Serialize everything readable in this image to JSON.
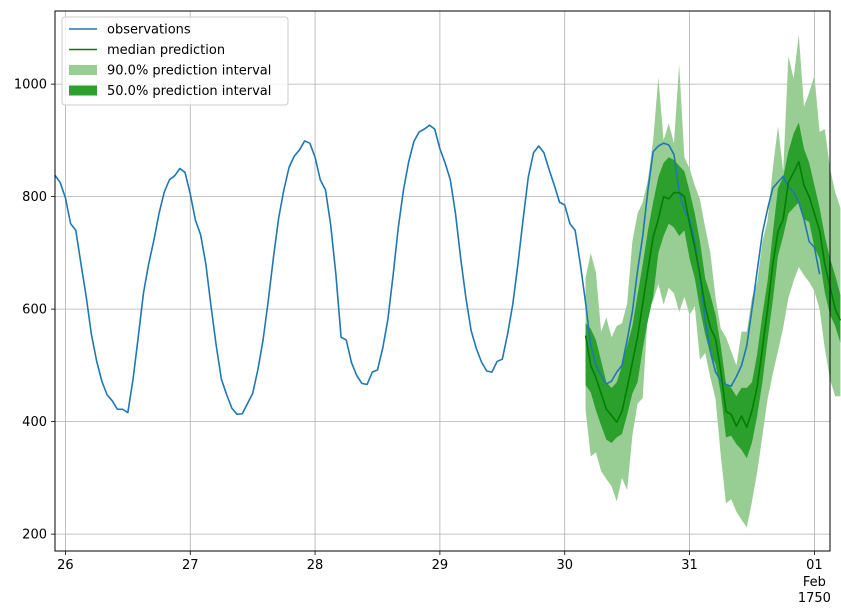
{
  "chart_data": {
    "type": "line",
    "title": "",
    "xlabel": "",
    "ylabel": "",
    "x_unit": "hour",
    "xlim": [
      "1750-01-25T22:00",
      "1750-02-01T03:00"
    ],
    "ylim": [
      170,
      1130
    ],
    "grid": true,
    "legend_position": "top-left",
    "x_ticks": [
      {
        "at": "1750-01-26T00:00",
        "label": "26"
      },
      {
        "at": "1750-01-27T00:00",
        "label": "27"
      },
      {
        "at": "1750-01-28T00:00",
        "label": "28"
      },
      {
        "at": "1750-01-29T00:00",
        "label": "29"
      },
      {
        "at": "1750-01-30T00:00",
        "label": "30"
      },
      {
        "at": "1750-01-31T00:00",
        "label": "31"
      },
      {
        "at": "1750-02-01T00:00",
        "label": "01",
        "label2": "Feb",
        "label3": "1750"
      }
    ],
    "y_ticks": [
      200,
      400,
      600,
      800,
      1000
    ],
    "series": [
      {
        "name": "observations",
        "color": "#1f77b4",
        "kind": "line",
        "start": "1750-01-25T22:00",
        "values": [
          838,
          825,
          798,
          752,
          740,
          680,
          622,
          555,
          508,
          472,
          448,
          437,
          422,
          422,
          416,
          475,
          550,
          628,
          680,
          722,
          770,
          808,
          830,
          837,
          850,
          843,
          805,
          758,
          732,
          680,
          605,
          535,
          475,
          448,
          424,
          413,
          414,
          432,
          450,
          492,
          545,
          615,
          692,
          762,
          812,
          852,
          872,
          883,
          899,
          895,
          870,
          830,
          812,
          750,
          662,
          550,
          545,
          505,
          482,
          468,
          466,
          488,
          492,
          530,
          582,
          660,
          745,
          812,
          862,
          898,
          915,
          920,
          927,
          920,
          885,
          860,
          830,
          770,
          690,
          620,
          562,
          530,
          506,
          490,
          488,
          507,
          511,
          555,
          608,
          680,
          760,
          835,
          878,
          890,
          878,
          848,
          820,
          790,
          785,
          752,
          740,
          680,
          612,
          535,
          500,
          482,
          467,
          472,
          488,
          500,
          545,
          595,
          668,
          730,
          812,
          880,
          890,
          895,
          892,
          875,
          810,
          775,
          760,
          720,
          660,
          580,
          524,
          488,
          473,
          466,
          463,
          480,
          500,
          535,
          600,
          668,
          735,
          778,
          815,
          826,
          836,
          818,
          808,
          790,
          760,
          720,
          710,
          662
        ]
      },
      {
        "name": "median prediction",
        "color": "#008000",
        "kind": "line",
        "start": "1750-01-30T04:00",
        "values": [
          553,
          500,
          478,
          450,
          422,
          411,
          399,
          418,
          460,
          505,
          550,
          610,
          670,
          728,
          760,
          800,
          796,
          807,
          807,
          800,
          752,
          710,
          660,
          605,
          567,
          547,
          490,
          418,
          413,
          392,
          410,
          390,
          420,
          462,
          530,
          600,
          680,
          738,
          760,
          825,
          843,
          862,
          820,
          800,
          770,
          740,
          680,
          640,
          600,
          580
        ]
      },
      {
        "name": "90.0% prediction interval",
        "color": "#98cd94",
        "kind": "band",
        "start": "1750-01-30T04:00",
        "lower": [
          421,
          338,
          345,
          312,
          298,
          285,
          258,
          300,
          278,
          375,
          432,
          442,
          600,
          615,
          645,
          608,
          638,
          628,
          595,
          622,
          590,
          605,
          510,
          522,
          478,
          440,
          340,
          255,
          262,
          240,
          225,
          212,
          258,
          310,
          375,
          440,
          485,
          525,
          567,
          620,
          650,
          675,
          660,
          648,
          632,
          600,
          530,
          475,
          445,
          445
        ],
        "upper": [
          655,
          700,
          665,
          560,
          585,
          550,
          570,
          575,
          610,
          720,
          770,
          790,
          830,
          900,
          1012,
          900,
          930,
          895,
          1035,
          870,
          850,
          820,
          795,
          745,
          700,
          620,
          565,
          550,
          525,
          500,
          560,
          560,
          620,
          648,
          720,
          758,
          850,
          925,
          845,
          1050,
          1010,
          1088,
          960,
          985,
          1015,
          915,
          920,
          850,
          808,
          780
        ]
      },
      {
        "name": "50.0% prediction interval",
        "color": "#2ca02c",
        "kind": "band",
        "start": "1750-01-30T04:00",
        "lower": [
          465,
          452,
          420,
          393,
          368,
          362,
          372,
          378,
          412,
          450,
          470,
          530,
          580,
          622,
          700,
          730,
          752,
          745,
          730,
          740,
          690,
          655,
          600,
          555,
          520,
          502,
          450,
          372,
          375,
          360,
          350,
          335,
          363,
          410,
          470,
          545,
          615,
          695,
          730,
          770,
          780,
          790,
          760,
          755,
          710,
          690,
          630,
          590,
          570,
          540
        ],
        "upper": [
          575,
          565,
          545,
          508,
          470,
          460,
          470,
          500,
          535,
          570,
          625,
          680,
          740,
          790,
          835,
          860,
          870,
          865,
          855,
          845,
          810,
          770,
          720,
          655,
          625,
          590,
          535,
          467,
          460,
          445,
          460,
          460,
          470,
          520,
          590,
          650,
          735,
          815,
          835,
          880,
          912,
          932,
          885,
          860,
          820,
          780,
          730,
          690,
          660,
          625
        ]
      }
    ]
  }
}
